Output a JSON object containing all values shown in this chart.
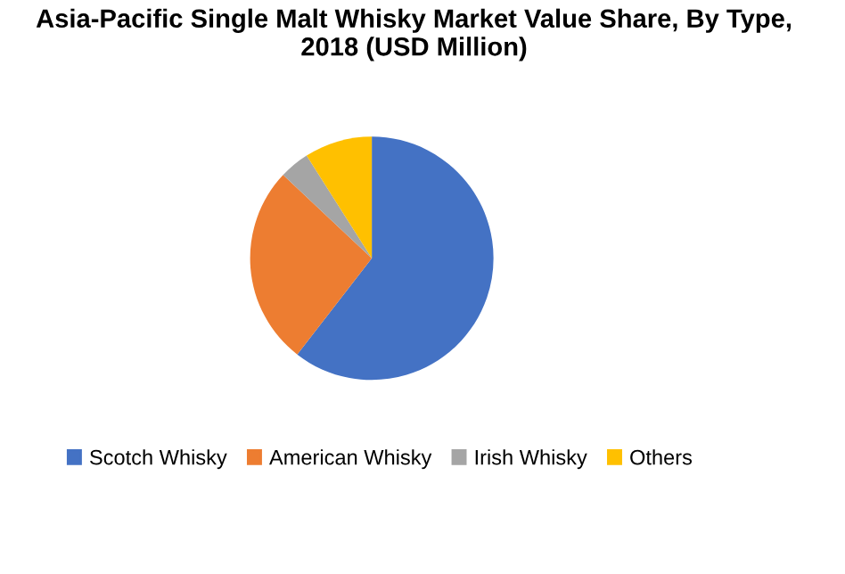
{
  "chart_data": {
    "type": "pie",
    "title": "Asia-Pacific Single Malt Whisky Market Value Share, By Type,\n2018 (USD Million)",
    "categories": [
      "Scotch Whisky",
      "American Whisky",
      "Irish Whisky",
      "Others"
    ],
    "values": [
      60.5,
      26.5,
      4,
      9
    ],
    "colors": [
      "#4472c4",
      "#ed7d31",
      "#a5a5a5",
      "#ffc000"
    ],
    "legend": "bottom"
  }
}
